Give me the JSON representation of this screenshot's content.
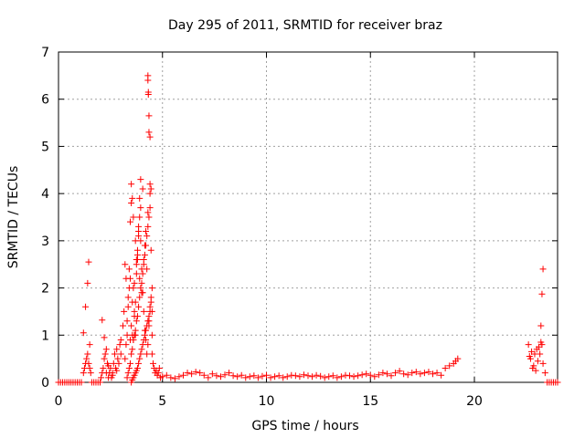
{
  "chart_data": {
    "type": "scatter",
    "title": "Day 295 of 2011, SRMTID for receiver braz",
    "xlabel": "GPS time / hours",
    "ylabel": "SRMTID / TECUs",
    "xlim": [
      0,
      24
    ],
    "ylim": [
      0,
      7
    ],
    "xticks": [
      0,
      5,
      10,
      15,
      20
    ],
    "yticks": [
      0,
      1,
      2,
      3,
      4,
      5,
      6,
      7
    ],
    "grid": true,
    "marker": "+",
    "color": "#ff0000",
    "series": [
      {
        "x": [
          0.0,
          0.1,
          0.2,
          0.3,
          0.4,
          0.5,
          0.6,
          0.7,
          0.8,
          0.9,
          1.0,
          1.1,
          1.2,
          1.25,
          1.3,
          1.35,
          1.4,
          1.45,
          1.5,
          1.55,
          1.45,
          1.4,
          1.3,
          1.2,
          1.5,
          1.6,
          1.7,
          1.8,
          1.9,
          2.0,
          2.05,
          2.1,
          2.15,
          2.2,
          2.25,
          2.3,
          2.35,
          2.4,
          2.45,
          2.5,
          2.55,
          2.6,
          2.65,
          2.7,
          2.75,
          2.8,
          2.85,
          2.9,
          2.95,
          3.0,
          2.1,
          2.2,
          2.3,
          2.4,
          2.6,
          2.8,
          3.0,
          3.1,
          3.15,
          3.2,
          3.25,
          3.3,
          3.35,
          3.4,
          3.45,
          3.5,
          3.55,
          3.6,
          3.65,
          3.7,
          3.75,
          3.8,
          3.85,
          3.9,
          3.95,
          3.2,
          3.25,
          3.3,
          3.35,
          3.4,
          3.45,
          3.5,
          3.55,
          3.6,
          3.65,
          3.7,
          3.75,
          3.8,
          3.85,
          3.9,
          3.95,
          4.0,
          4.05,
          4.1,
          4.15,
          4.2,
          4.25,
          4.3,
          4.35,
          4.4,
          3.3,
          3.4,
          3.5,
          3.6,
          3.7,
          3.8,
          3.9,
          4.0,
          4.1,
          4.2,
          4.3,
          4.4,
          4.5,
          3.35,
          3.45,
          3.55,
          3.65,
          3.75,
          3.85,
          3.95,
          4.05,
          4.15,
          4.25,
          4.35,
          4.45,
          3.5,
          3.6,
          3.7,
          3.8,
          3.9,
          4.0,
          4.1,
          4.2,
          4.3,
          4.4,
          3.55,
          3.65,
          3.75,
          3.85,
          3.95,
          4.05,
          4.15,
          4.25,
          4.35,
          4.45,
          4.3,
          4.3,
          4.32,
          4.32,
          4.35,
          4.35,
          4.4,
          4.4,
          4.45,
          4.5,
          4.5,
          4.55,
          4.6,
          4.65,
          4.7,
          4.75,
          4.8,
          4.85,
          4.9,
          3.5,
          3.6,
          3.7,
          3.8,
          3.9,
          4.0,
          4.1,
          4.2,
          4.3,
          4.4,
          4.45,
          4.5,
          3.45,
          3.55,
          3.65,
          3.75,
          3.85,
          3.95,
          4.05,
          4.15,
          4.25,
          4.35,
          5.0,
          5.2,
          5.4,
          5.6,
          5.8,
          6.0,
          6.2,
          6.4,
          6.6,
          6.8,
          7.0,
          7.2,
          7.4,
          7.6,
          7.8,
          8.0,
          8.2,
          8.4,
          8.6,
          8.8,
          9.0,
          9.2,
          9.4,
          9.6,
          9.8,
          10.0,
          10.2,
          10.4,
          10.6,
          10.8,
          11.0,
          11.2,
          11.4,
          11.6,
          11.8,
          12.0,
          12.2,
          12.4,
          12.6,
          12.8,
          13.0,
          13.2,
          13.4,
          13.6,
          13.8,
          14.0,
          14.2,
          14.4,
          14.6,
          14.8,
          15.0,
          15.2,
          15.4,
          15.6,
          15.8,
          16.0,
          16.2,
          16.4,
          16.6,
          16.8,
          17.0,
          17.2,
          17.4,
          17.6,
          17.8,
          18.0,
          18.2,
          18.4,
          18.6,
          18.8,
          19.0,
          19.1,
          19.2,
          22.6,
          22.7,
          22.8,
          22.9,
          23.0,
          23.1,
          23.2,
          23.3,
          23.4,
          22.65,
          22.75,
          22.85,
          22.95,
          23.05,
          23.15,
          23.25,
          23.2,
          23.25,
          23.3,
          23.5,
          23.6,
          23.7,
          23.8,
          23.9,
          24.0
        ],
        "y": [
          0.0,
          0.0,
          0.0,
          0.0,
          0.0,
          0.0,
          0.0,
          0.0,
          0.0,
          0.0,
          0.0,
          0.0,
          0.2,
          0.3,
          0.4,
          0.5,
          0.6,
          0.4,
          0.3,
          0.2,
          2.55,
          2.1,
          1.6,
          1.05,
          0.8,
          0.0,
          0.0,
          0.0,
          0.0,
          0.0,
          0.1,
          0.2,
          0.3,
          0.5,
          0.6,
          0.2,
          0.4,
          0.1,
          0.2,
          0.3,
          0.1,
          0.2,
          0.4,
          0.6,
          0.3,
          0.7,
          0.5,
          0.4,
          0.8,
          0.6,
          1.32,
          0.95,
          0.7,
          0.35,
          0.15,
          0.25,
          0.9,
          1.2,
          1.5,
          2.5,
          2.2,
          1.0,
          1.8,
          2.4,
          3.4,
          4.2,
          3.9,
          2.0,
          1.5,
          1.0,
          2.3,
          2.6,
          3.1,
          3.9,
          4.3,
          0.5,
          0.8,
          1.3,
          1.6,
          2.0,
          2.2,
          1.2,
          1.0,
          0.9,
          1.4,
          1.7,
          2.5,
          2.8,
          3.2,
          3.5,
          3.0,
          2.4,
          1.9,
          1.5,
          1.1,
          0.9,
          0.6,
          0.8,
          1.2,
          1.6,
          0.1,
          0.3,
          0.6,
          0.9,
          1.1,
          1.4,
          1.8,
          2.1,
          2.6,
          2.9,
          3.3,
          3.7,
          2.0,
          0.2,
          0.4,
          0.7,
          1.0,
          1.3,
          1.6,
          2.0,
          2.3,
          2.7,
          3.1,
          3.5,
          1.8,
          0.0,
          0.1,
          0.2,
          0.3,
          0.5,
          0.7,
          0.9,
          1.1,
          1.3,
          1.5,
          0.05,
          0.15,
          0.25,
          0.4,
          0.6,
          0.8,
          1.0,
          1.2,
          1.4,
          1.7,
          6.5,
          6.4,
          6.15,
          6.1,
          5.65,
          5.3,
          5.2,
          4.2,
          4.1,
          1.0,
          0.6,
          0.4,
          0.3,
          0.2,
          0.25,
          0.15,
          0.2,
          0.3,
          0.1,
          3.8,
          3.5,
          3.0,
          2.7,
          2.2,
          1.9,
          2.5,
          3.2,
          3.6,
          4.0,
          2.8,
          1.5,
          0.9,
          1.7,
          2.1,
          2.6,
          3.3,
          3.7,
          4.1,
          2.9,
          2.4,
          1.3,
          0.12,
          0.15,
          0.1,
          0.08,
          0.12,
          0.15,
          0.2,
          0.18,
          0.22,
          0.2,
          0.15,
          0.1,
          0.18,
          0.14,
          0.12,
          0.16,
          0.2,
          0.14,
          0.12,
          0.15,
          0.1,
          0.12,
          0.14,
          0.1,
          0.13,
          0.15,
          0.1,
          0.12,
          0.14,
          0.1,
          0.12,
          0.15,
          0.14,
          0.12,
          0.16,
          0.14,
          0.12,
          0.15,
          0.13,
          0.1,
          0.12,
          0.14,
          0.1,
          0.12,
          0.15,
          0.14,
          0.12,
          0.14,
          0.16,
          0.18,
          0.15,
          0.12,
          0.16,
          0.2,
          0.18,
          0.14,
          0.2,
          0.24,
          0.18,
          0.16,
          0.2,
          0.22,
          0.18,
          0.2,
          0.22,
          0.18,
          0.2,
          0.15,
          0.3,
          0.35,
          0.4,
          0.45,
          0.5,
          0.8,
          0.5,
          0.3,
          0.6,
          0.7,
          0.75,
          0.85,
          0.4,
          0.2,
          0.55,
          0.65,
          0.35,
          0.25,
          0.45,
          0.6,
          0.8,
          1.2,
          1.87,
          2.4,
          0.0,
          0.0,
          0.0,
          0.0,
          0.0,
          0.0
        ]
      }
    ]
  }
}
